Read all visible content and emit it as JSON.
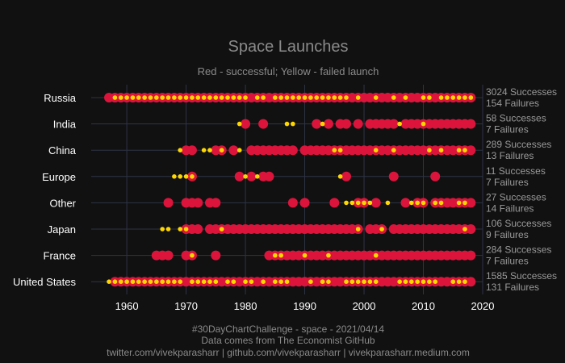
{
  "chart_data": {
    "type": "scatter",
    "title": "Space Launches",
    "subtitle": "Red - successful; Yellow - failed launch",
    "xlim": [
      1954,
      2020
    ],
    "x_ticks": [
      1960,
      1970,
      1980,
      1990,
      2000,
      2010,
      2020
    ],
    "categories": [
      "Russia",
      "India",
      "China",
      "Europe",
      "Other",
      "Japan",
      "France",
      "United States"
    ],
    "success_color": "#dc143c",
    "failure_color": "#ffd700",
    "grid": true,
    "rows": [
      {
        "name": "Russia",
        "summary_success": "3024 Successes",
        "summary_failure": "154 Failures",
        "successes": [
          1957,
          1958,
          1959,
          1960,
          1961,
          1962,
          1963,
          1964,
          1965,
          1966,
          1967,
          1968,
          1969,
          1970,
          1971,
          1972,
          1973,
          1974,
          1975,
          1976,
          1977,
          1978,
          1979,
          1980,
          1981,
          1982,
          1983,
          1984,
          1985,
          1986,
          1987,
          1988,
          1989,
          1990,
          1991,
          1992,
          1993,
          1994,
          1995,
          1996,
          1997,
          1998,
          1999,
          2000,
          2001,
          2002,
          2003,
          2004,
          2005,
          2006,
          2007,
          2008,
          2009,
          2010,
          2011,
          2012,
          2013,
          2014,
          2015,
          2016,
          2017,
          2018
        ],
        "failures": [
          1958,
          1959,
          1960,
          1961,
          1962,
          1963,
          1964,
          1965,
          1966,
          1967,
          1968,
          1969,
          1970,
          1971,
          1972,
          1973,
          1974,
          1975,
          1976,
          1977,
          1978,
          1979,
          1980,
          1982,
          1983,
          1985,
          1986,
          1987,
          1988,
          1989,
          1990,
          1991,
          1992,
          1993,
          1994,
          1995,
          1996,
          1997,
          1999,
          2002,
          2005,
          2007,
          2010,
          2011,
          2013,
          2014,
          2015,
          2016,
          2017,
          2018
        ]
      },
      {
        "name": "India",
        "summary_success": "58 Successes",
        "summary_failure": "7 Failures",
        "successes": [
          1980,
          1983,
          1992,
          1994,
          1996,
          1997,
          1999,
          2001,
          2002,
          2003,
          2004,
          2005,
          2007,
          2008,
          2009,
          2010,
          2011,
          2012,
          2013,
          2014,
          2015,
          2016,
          2017,
          2018
        ],
        "failures": [
          1979,
          1987,
          1988,
          1993,
          2006,
          2010
        ]
      },
      {
        "name": "China",
        "summary_success": "289 Successes",
        "summary_failure": "13 Failures",
        "successes": [
          1970,
          1971,
          1975,
          1976,
          1978,
          1981,
          1982,
          1983,
          1984,
          1985,
          1986,
          1987,
          1988,
          1990,
          1991,
          1992,
          1993,
          1994,
          1995,
          1996,
          1997,
          1998,
          1999,
          2000,
          2001,
          2002,
          2003,
          2004,
          2005,
          2006,
          2007,
          2008,
          2009,
          2010,
          2011,
          2012,
          2013,
          2014,
          2015,
          2016,
          2017,
          2018
        ],
        "failures": [
          1969,
          1973,
          1974,
          1976,
          1979,
          1995,
          1996,
          2002,
          2005,
          2011,
          2013,
          2016,
          2017
        ]
      },
      {
        "name": "Europe",
        "summary_success": "11 Successes",
        "summary_failure": "7 Failures",
        "successes": [
          1971,
          1979,
          1981,
          1983,
          1984,
          1997,
          2005,
          2012
        ],
        "failures": [
          1968,
          1969,
          1970,
          1971,
          1980,
          1982,
          1996
        ]
      },
      {
        "name": "Other",
        "summary_success": "27 Successes",
        "summary_failure": "14 Failures",
        "successes": [
          1967,
          1970,
          1971,
          1972,
          1974,
          1975,
          1988,
          1990,
          1995,
          1999,
          2000,
          2002,
          2007,
          2009,
          2010,
          2012,
          2013,
          2014,
          2015,
          2016,
          2017,
          2018
        ],
        "failures": [
          1997,
          1998,
          1999,
          2000,
          2001,
          2004,
          2008,
          2009,
          2010,
          2012,
          2013,
          2016,
          2017
        ]
      },
      {
        "name": "Japan",
        "summary_success": "106 Successes",
        "summary_failure": "9 Failures",
        "successes": [
          1970,
          1971,
          1972,
          1974,
          1975,
          1976,
          1977,
          1978,
          1979,
          1980,
          1981,
          1982,
          1983,
          1984,
          1985,
          1986,
          1987,
          1988,
          1989,
          1990,
          1991,
          1992,
          1993,
          1994,
          1995,
          1996,
          1997,
          1998,
          1999,
          2001,
          2002,
          2003,
          2005,
          2006,
          2007,
          2008,
          2009,
          2010,
          2011,
          2012,
          2013,
          2014,
          2015,
          2016,
          2017,
          2018
        ],
        "failures": [
          1966,
          1967,
          1969,
          1970,
          1976,
          1999,
          2003,
          2017
        ]
      },
      {
        "name": "France",
        "summary_success": "284 Successes",
        "summary_failure": "7 Failures",
        "successes": [
          1965,
          1966,
          1967,
          1970,
          1971,
          1975,
          1984,
          1985,
          1986,
          1987,
          1988,
          1989,
          1990,
          1991,
          1992,
          1993,
          1994,
          1995,
          1996,
          1997,
          1998,
          1999,
          2000,
          2001,
          2002,
          2003,
          2004,
          2005,
          2006,
          2007,
          2008,
          2009,
          2010,
          2011,
          2012,
          2013,
          2014,
          2015,
          2016,
          2017,
          2018
        ],
        "failures": [
          1971,
          1985,
          1986,
          1990,
          1994,
          2002
        ]
      },
      {
        "name": "United States",
        "summary_success": "1585 Successes",
        "summary_failure": "131 Failures",
        "successes": [
          1958,
          1959,
          1960,
          1961,
          1962,
          1963,
          1964,
          1965,
          1966,
          1967,
          1968,
          1969,
          1970,
          1971,
          1972,
          1973,
          1974,
          1975,
          1976,
          1977,
          1978,
          1979,
          1980,
          1981,
          1982,
          1983,
          1984,
          1985,
          1986,
          1987,
          1988,
          1989,
          1990,
          1991,
          1992,
          1993,
          1994,
          1995,
          1996,
          1997,
          1998,
          1999,
          2000,
          2001,
          2002,
          2003,
          2004,
          2005,
          2006,
          2007,
          2008,
          2009,
          2010,
          2011,
          2012,
          2013,
          2014,
          2015,
          2016,
          2017,
          2018
        ],
        "failures": [
          1957,
          1958,
          1959,
          1960,
          1961,
          1962,
          1963,
          1964,
          1965,
          1966,
          1967,
          1968,
          1969,
          1971,
          1972,
          1973,
          1974,
          1975,
          1977,
          1978,
          1980,
          1981,
          1983,
          1985,
          1986,
          1987,
          1991,
          1993,
          1994,
          1997,
          1998,
          1999,
          2000,
          2001,
          2002,
          2006,
          2007,
          2008,
          2009,
          2010,
          2011,
          2012,
          2015,
          2016,
          2017
        ]
      }
    ]
  },
  "footer": {
    "line1": "#30DayChartChallenge - space - 2021/04/14",
    "line2": "Data comes from The Economist GitHub",
    "line3": "twitter.com/vivekparasharr | github.com/vivekparasharr | vivekparasharr.medium.com"
  }
}
